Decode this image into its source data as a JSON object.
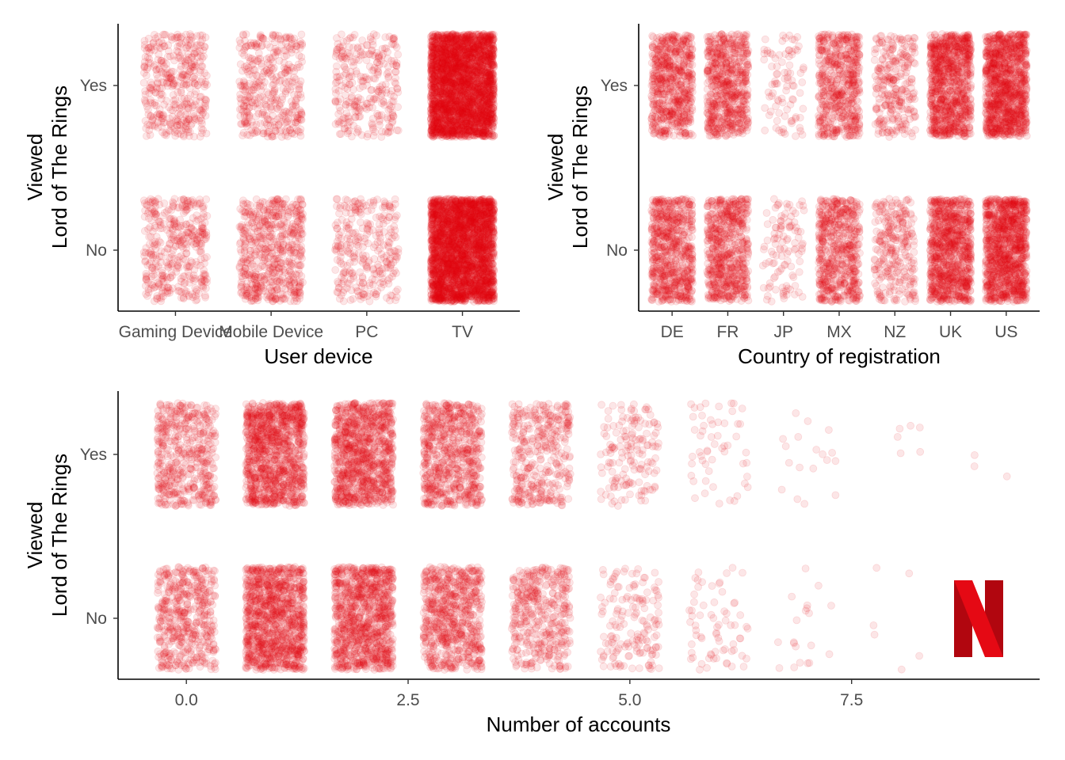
{
  "colors": {
    "accent": "#e50914",
    "logo_dark": "#b1060f"
  },
  "logo": {
    "name": "netflix-logo-icon"
  },
  "chart_data": [
    {
      "type": "scatter",
      "id": "device",
      "xlabel": "User device",
      "ylabel": "Viewed\nLord of The Rings",
      "categories": [
        "Gaming Device",
        "Mobile Device",
        "PC",
        "TV"
      ],
      "y_categories": [
        "No",
        "Yes"
      ],
      "counts": {
        "No": [
          400,
          600,
          300,
          3000
        ],
        "Yes": [
          400,
          400,
          300,
          3000
        ]
      },
      "jitter": "width 0.3, height 0.3",
      "opacity": 0.1
    },
    {
      "type": "scatter",
      "id": "country",
      "xlabel": "Country of registration",
      "ylabel": "Viewed\nLord of The Rings",
      "categories": [
        "DE",
        "FR",
        "JP",
        "MX",
        "NZ",
        "UK",
        "US"
      ],
      "y_categories": [
        "No",
        "Yes"
      ],
      "counts": {
        "No": [
          700,
          650,
          110,
          600,
          280,
          950,
          1100
        ],
        "Yes": [
          650,
          650,
          90,
          580,
          280,
          950,
          1100
        ]
      },
      "jitter": "width 0.35, height 0.3",
      "opacity": 0.1
    },
    {
      "type": "scatter",
      "id": "accounts",
      "xlabel": "Number of accounts",
      "ylabel": "Viewed\nLord of The Rings",
      "x": [
        0,
        1,
        2,
        3,
        4,
        5,
        6,
        7,
        8,
        9
      ],
      "x_ticks": [
        "0.0",
        "2.5",
        "5.0",
        "7.5"
      ],
      "x_tick_values": [
        0,
        2.5,
        5,
        7.5
      ],
      "xlim": [
        -0.77,
        9.62
      ],
      "y_categories": [
        "No",
        "Yes"
      ],
      "counts": {
        "No": [
          500,
          1100,
          1000,
          700,
          420,
          160,
          70,
          20,
          6,
          0
        ],
        "Yes": [
          500,
          1100,
          1000,
          700,
          380,
          160,
          55,
          18,
          6,
          3
        ]
      },
      "jitter": "width 0.33, height 0.3",
      "opacity": 0.1
    }
  ]
}
